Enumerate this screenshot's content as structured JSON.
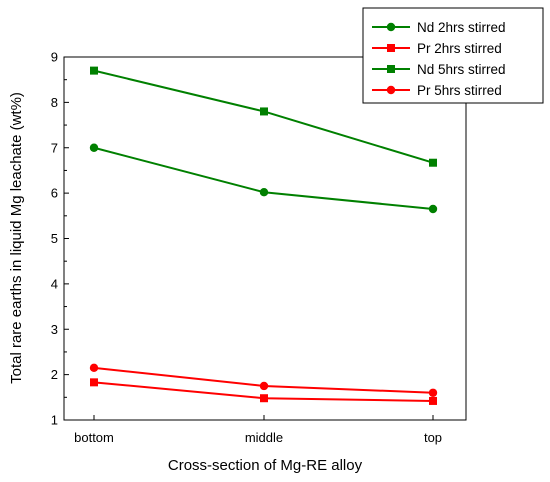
{
  "chart_data": {
    "type": "line",
    "title": "",
    "xlabel": "Cross-section of Mg-RE alloy",
    "ylabel": "Total rare earths in liquid Mg leachate (wt%)",
    "categories": [
      "bottom",
      "middle",
      "top"
    ],
    "ylim": [
      1,
      9
    ],
    "yticks": [
      "1",
      "2",
      "3",
      "4",
      "5",
      "6",
      "7",
      "8",
      "9"
    ],
    "grid": false,
    "legend_position": "top-right",
    "series": [
      {
        "name": "Nd 2hrs stirred",
        "color": "#008000",
        "marker": "circle",
        "values": [
          7.0,
          6.02,
          5.65
        ]
      },
      {
        "name": "Pr 2hrs stirred",
        "color": "#ff0000",
        "marker": "square",
        "values": [
          1.83,
          1.48,
          1.42
        ]
      },
      {
        "name": "Nd 5hrs stirred",
        "color": "#008000",
        "marker": "square",
        "values": [
          8.7,
          7.8,
          6.67
        ]
      },
      {
        "name": "Pr 5hrs stirred",
        "color": "#ff0000",
        "marker": "circle",
        "values": [
          2.15,
          1.75,
          1.6
        ]
      }
    ]
  }
}
